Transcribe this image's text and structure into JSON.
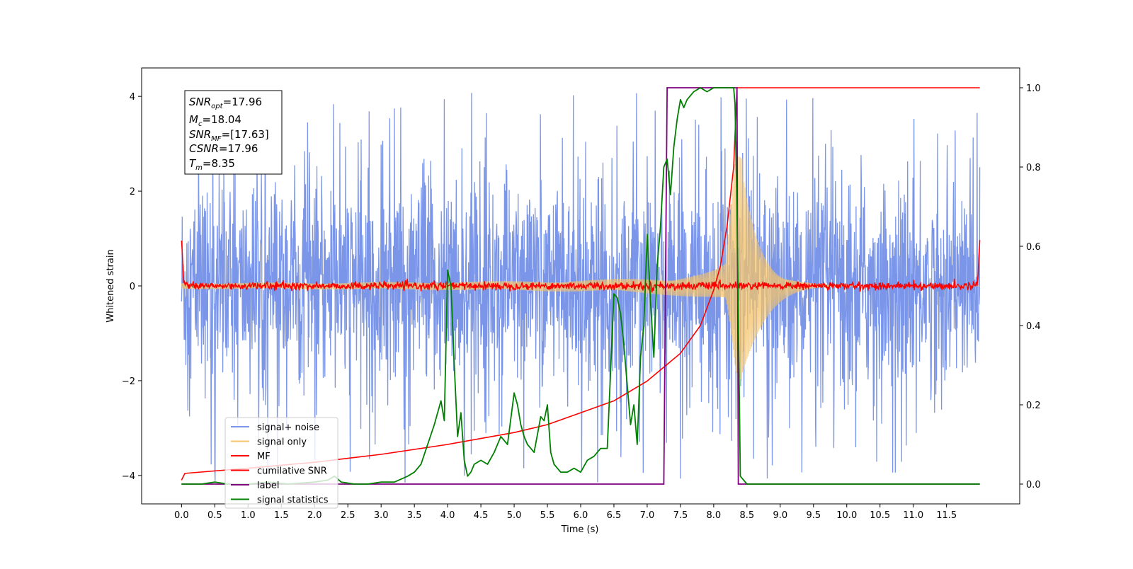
{
  "chart_data": {
    "type": "line",
    "xlabel": "Time (s)",
    "ylabel": "Whitened strain",
    "xlim": [
      -0.6,
      12.6
    ],
    "ylim": [
      -4.6,
      4.6
    ],
    "y2lim": [
      -0.05,
      1.05
    ],
    "x_ticks": [
      "0.0",
      "0.5",
      "1.0",
      "1.5",
      "2.0",
      "2.5",
      "3.0",
      "3.5",
      "4.0",
      "4.5",
      "5.0",
      "5.5",
      "6.0",
      "6.5",
      "7.0",
      "7.5",
      "8.0",
      "8.5",
      "9.0",
      "9.5",
      "10.0",
      "10.5",
      "11.0",
      "11.5"
    ],
    "y_ticks": [
      "−4",
      "−2",
      "0",
      "2",
      "4"
    ],
    "y2_ticks": [
      "0.0",
      "0.2",
      "0.4",
      "0.6",
      "0.8",
      "1.0"
    ],
    "annotation": {
      "snr_opt": {
        "name": "SNR",
        "sub": "opt",
        "value": "=17.96"
      },
      "mc": {
        "name": "M",
        "sub": "c",
        "value": "=18.04"
      },
      "snr_mf": {
        "name": "SNR",
        "sub": "MF",
        "value": "=[17.63]"
      },
      "csnr": {
        "name": "CSNR",
        "sub": "",
        "value": "=17.96"
      },
      "tm": {
        "name": "T",
        "sub": "m",
        "value": "=8.35"
      }
    },
    "legend": {
      "placement": "lower-left",
      "items": [
        {
          "label": "signal+ noise",
          "color": "#7b96e8"
        },
        {
          "label": "signal only",
          "color": "#f5c46a"
        },
        {
          "label": "MF",
          "color": "#ff0000"
        },
        {
          "label": "cumilative SNR",
          "color": "#ff0000"
        },
        {
          "label": "label",
          "color": "#800080"
        },
        {
          "label": "signal statistics",
          "color": "#008000"
        }
      ]
    },
    "series": [
      {
        "name": "signal+ noise",
        "axis": "left",
        "color": "#7b96e8",
        "style": "noise",
        "x_range": [
          0,
          12
        ],
        "amplitude_std": 1.0,
        "spike_max": 4.15
      },
      {
        "name": "signal only",
        "axis": "left",
        "color": "#f5c46a",
        "style": "chirp",
        "x_range": [
          0,
          12
        ],
        "merger_time": 8.35,
        "peak_amplitude": 2.8
      },
      {
        "name": "MF",
        "axis": "left",
        "color": "#ff0000",
        "style": "noise-small",
        "x": [
          0,
          0.03,
          0.1,
          11.9,
          11.97,
          12.0
        ],
        "y": [
          1.0,
          0.1,
          0.0,
          0.0,
          0.1,
          1.0
        ],
        "noise_std": 0.04
      },
      {
        "name": "cumilative SNR",
        "axis": "right",
        "color": "#ff0000",
        "x": [
          0,
          0.05,
          1,
          2,
          3,
          4,
          5,
          5.5,
          6,
          6.5,
          7,
          7.5,
          7.8,
          8.0,
          8.1,
          8.2,
          8.3,
          8.35,
          12.0
        ],
        "y": [
          0.01,
          0.027,
          0.04,
          0.055,
          0.075,
          0.1,
          0.13,
          0.15,
          0.18,
          0.21,
          0.26,
          0.33,
          0.4,
          0.49,
          0.55,
          0.65,
          0.8,
          1.0,
          1.0
        ]
      },
      {
        "name": "label",
        "axis": "right",
        "color": "#800080",
        "x": [
          0,
          7.25,
          7.3,
          8.35,
          8.37,
          12.0
        ],
        "y": [
          0.0,
          0.0,
          1.0,
          1.0,
          0.0,
          0.0
        ]
      },
      {
        "name": "signal statistics",
        "axis": "right",
        "color": "#008000",
        "x": [
          0,
          0.3,
          0.5,
          0.7,
          1.0,
          1.3,
          1.6,
          2.0,
          2.2,
          2.3,
          2.4,
          2.6,
          2.8,
          3.0,
          3.2,
          3.4,
          3.5,
          3.6,
          3.7,
          3.8,
          3.9,
          3.95,
          4.0,
          4.05,
          4.1,
          4.15,
          4.2,
          4.25,
          4.3,
          4.35,
          4.4,
          4.5,
          4.6,
          4.7,
          4.8,
          4.9,
          5.0,
          5.05,
          5.1,
          5.15,
          5.2,
          5.3,
          5.4,
          5.45,
          5.5,
          5.55,
          5.6,
          5.7,
          5.8,
          5.9,
          6.0,
          6.1,
          6.2,
          6.3,
          6.4,
          6.5,
          6.55,
          6.6,
          6.65,
          6.7,
          6.75,
          6.8,
          6.85,
          6.9,
          6.95,
          7.0,
          7.05,
          7.1,
          7.15,
          7.2,
          7.25,
          7.3,
          7.35,
          7.4,
          7.45,
          7.5,
          7.55,
          7.6,
          7.7,
          7.8,
          7.9,
          8.0,
          8.1,
          8.2,
          8.3,
          8.32,
          8.35,
          8.4,
          8.5,
          12.0
        ],
        "y": [
          0.0,
          0.0,
          0.005,
          0.0,
          0.0,
          0.005,
          0.0,
          0.005,
          0.01,
          0.02,
          0.005,
          0.0,
          0.0,
          0.005,
          0.005,
          0.02,
          0.03,
          0.05,
          0.1,
          0.15,
          0.21,
          0.16,
          0.54,
          0.5,
          0.3,
          0.12,
          0.18,
          0.06,
          0.02,
          0.03,
          0.05,
          0.06,
          0.05,
          0.08,
          0.12,
          0.1,
          0.23,
          0.2,
          0.15,
          0.12,
          0.1,
          0.08,
          0.17,
          0.16,
          0.2,
          0.08,
          0.05,
          0.03,
          0.03,
          0.04,
          0.03,
          0.06,
          0.07,
          0.09,
          0.09,
          0.48,
          0.47,
          0.43,
          0.35,
          0.25,
          0.15,
          0.2,
          0.1,
          0.32,
          0.4,
          0.63,
          0.46,
          0.32,
          0.55,
          0.65,
          0.8,
          0.82,
          0.73,
          0.85,
          0.92,
          0.97,
          0.95,
          0.97,
          0.99,
          1.0,
          0.99,
          1.0,
          1.0,
          1.0,
          1.0,
          0.96,
          0.7,
          0.02,
          0.0,
          0.0
        ]
      }
    ]
  }
}
